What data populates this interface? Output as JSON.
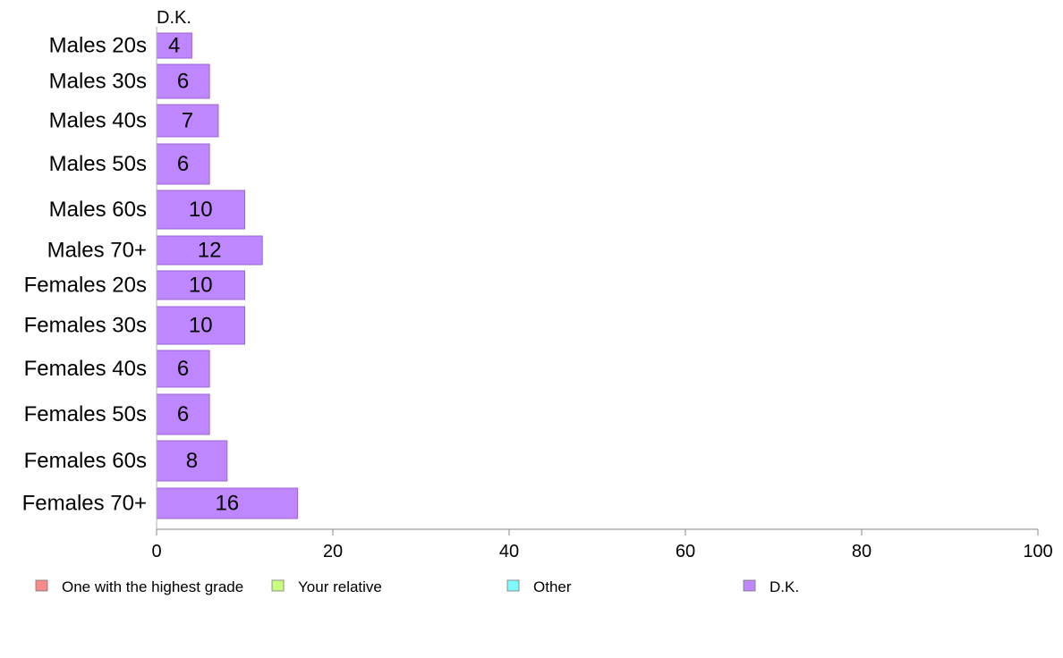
{
  "chart_data": {
    "type": "bar",
    "orientation": "horizontal",
    "series_label": "D.K.",
    "categories": [
      "Males 20s",
      "Males 30s",
      "Males 40s",
      "Males 50s",
      "Males 60s",
      "Males 70+",
      "Females 20s",
      "Females 30s",
      "Females 40s",
      "Females 50s",
      "Females 60s",
      "Females 70+"
    ],
    "values": [
      4,
      6,
      7,
      6,
      10,
      12,
      10,
      10,
      6,
      6,
      8,
      16
    ],
    "value_labels": [
      "4",
      "6",
      "7",
      "6",
      "10",
      "12",
      "10",
      "10",
      "6",
      "6",
      "8",
      "16"
    ],
    "xlim": [
      0,
      100
    ],
    "x_ticks": [
      0,
      20,
      40,
      60,
      80,
      100
    ],
    "x_tick_labels": [
      "0",
      "20",
      "40",
      "60",
      "80",
      "100"
    ],
    "grid": false,
    "bar_color": "#bf87ff",
    "bar_edge_color": "#9a66d6",
    "legend_position": "bottom",
    "legend": [
      {
        "label": "One with the highest grade",
        "color": "#f88a8a"
      },
      {
        "label": "Your relative",
        "color": "#c8ff7f"
      },
      {
        "label": "Other",
        "color": "#7ffbfb"
      },
      {
        "label": "D.K.",
        "color": "#bf87ff"
      }
    ]
  }
}
